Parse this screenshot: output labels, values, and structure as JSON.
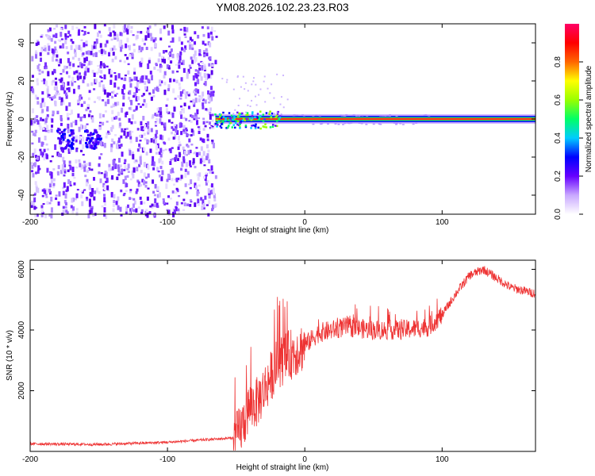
{
  "title": "YM08.2026.102.23.23.R03",
  "chart_data": [
    {
      "type": "heatmap",
      "xlabel": "Height of straight line (km)",
      "ylabel": "Frequency (Hz)",
      "xlim": [
        -200,
        168
      ],
      "ylim": [
        -50,
        50
      ],
      "x_ticks": [
        -200,
        -100,
        0,
        100
      ],
      "y_ticks": [
        -40,
        -20,
        0,
        20,
        40
      ],
      "colorbar": {
        "label": "Normalized spectral amplitude",
        "range": [
          0,
          1
        ],
        "ticks": [
          "0.0",
          "0.2",
          "0.4",
          "0.6",
          "0.8"
        ],
        "colors": [
          "#ffffff",
          "#c9a8ff",
          "#6600ff",
          "#0000ff",
          "#00ccff",
          "#00ff66",
          "#99ff00",
          "#ffff00",
          "#ff6600",
          "#ff0000",
          "#ff0066"
        ]
      },
      "features": {
        "noise_region_x": [
          -200,
          -65
        ],
        "carrier_frequency_hz": 0,
        "carrier_x": [
          -65,
          168
        ]
      }
    },
    {
      "type": "line",
      "xlabel": "Height of straight line (km)",
      "ylabel": "SNR (10 * v/v)",
      "xlim": [
        -200,
        168
      ],
      "ylim": [
        0,
        6300
      ],
      "x_ticks": [
        -200,
        -100,
        0,
        100
      ],
      "y_ticks": [
        2000,
        4000,
        6000
      ],
      "color": "#ee3333",
      "envelope": {
        "x": [
          -200,
          -150,
          -100,
          -60,
          -50,
          -45,
          -40,
          -35,
          -30,
          -20,
          -10,
          0,
          10,
          20,
          30,
          50,
          70,
          90,
          100,
          110,
          120,
          130,
          140,
          150,
          168
        ],
        "y": [
          250,
          230,
          300,
          420,
          450,
          900,
          1500,
          1600,
          2000,
          2900,
          3200,
          3500,
          3900,
          4000,
          4100,
          4000,
          4000,
          4100,
          4500,
          5200,
          5800,
          6000,
          5700,
          5400,
          5200
        ]
      }
    }
  ]
}
